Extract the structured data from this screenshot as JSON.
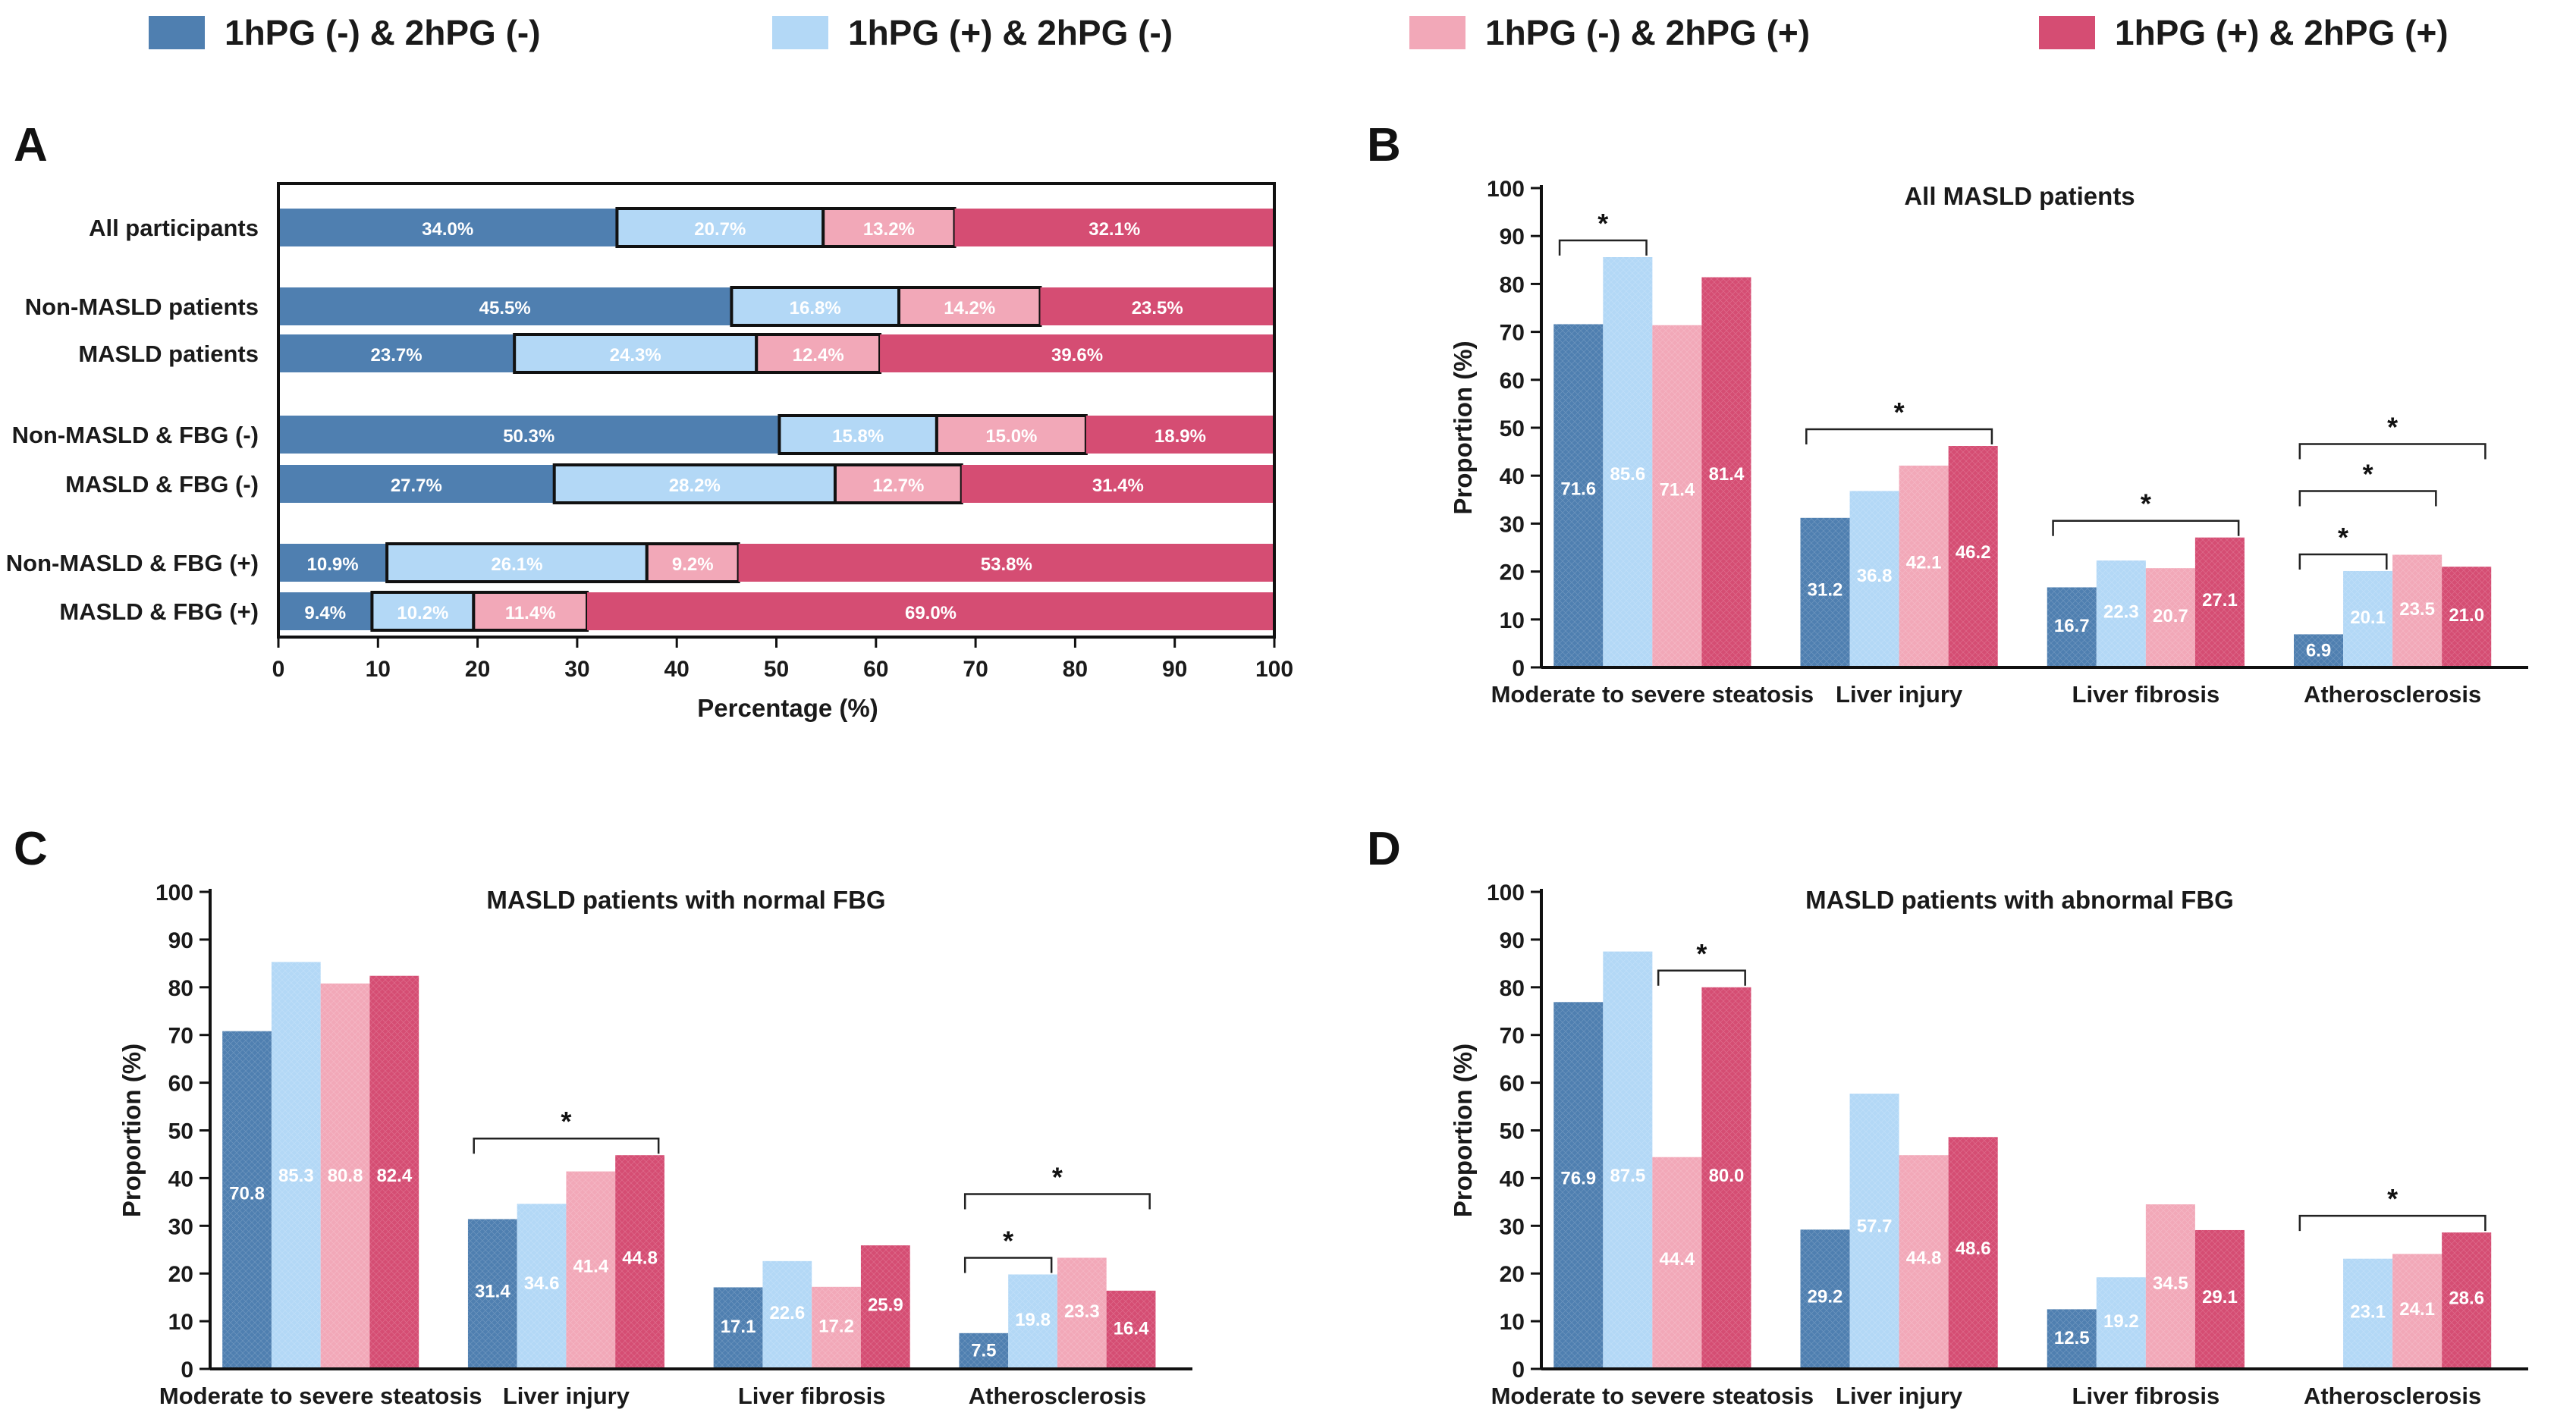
{
  "legend": [
    {
      "label": "1hPG (-) & 2hPG (-)",
      "color": "#4f7fb0"
    },
    {
      "label": "1hPG (+) & 2hPG (-)",
      "color": "#b3d8f6"
    },
    {
      "label": "1hPG (-) & 2hPG (+)",
      "color": "#f2a8b8"
    },
    {
      "label": "1hPG (+) & 2hPG (+)",
      "color": "#d54d73"
    }
  ],
  "chart_data": [
    {
      "panel": "A",
      "type": "bar",
      "orientation": "horizontal-stacked",
      "title": "",
      "xlabel": "Percentage (%)",
      "ylabel": "",
      "xlim": [
        0,
        100
      ],
      "xticks": [
        0,
        10,
        20,
        30,
        40,
        50,
        60,
        70,
        80,
        90,
        100
      ],
      "categories": [
        "All participants",
        "Non-MASLD patients",
        "MASLD patients",
        "Non-MASLD & FBG (-)",
        "MASLD & FBG (-)",
        "Non-MASLD & FBG (+)",
        "MASLD & FBG (+)"
      ],
      "series": [
        {
          "name": "1hPG (-) & 2hPG (-)",
          "values": [
            34.0,
            45.5,
            23.7,
            50.3,
            27.7,
            10.9,
            9.4
          ],
          "labels": [
            "34.0%",
            "45.5%",
            "23.7%",
            "50.3%",
            "27.7%",
            "10.9%",
            "9.4%"
          ]
        },
        {
          "name": "1hPG (+) & 2hPG (-)",
          "values": [
            20.7,
            16.8,
            24.3,
            15.8,
            28.2,
            26.1,
            10.2
          ],
          "labels": [
            "20.7%",
            "16.8%",
            "24.3%",
            "15.8%",
            "28.2%",
            "26.1%",
            "10.2%"
          ]
        },
        {
          "name": "1hPG (-) & 2hPG (+)",
          "values": [
            13.2,
            14.2,
            12.4,
            15.0,
            12.7,
            9.2,
            11.4
          ],
          "labels": [
            "13.2%",
            "14.2%",
            "12.4%",
            "15.0%",
            "12.7%",
            "9.2%",
            "11.4%"
          ]
        },
        {
          "name": "1hPG (+) & 2hPG (+)",
          "values": [
            32.1,
            23.5,
            39.6,
            18.9,
            31.4,
            53.8,
            69.0
          ],
          "labels": [
            "32.1%",
            "23.5%",
            "39.6%",
            "18.9%",
            "31.4%",
            "53.8%",
            "69.0%"
          ]
        }
      ]
    },
    {
      "panel": "B",
      "type": "bar",
      "title": "All MASLD patients",
      "xlabel": "",
      "ylabel": "Proportion (%)",
      "ylim": [
        0,
        100
      ],
      "yticks": [
        0,
        10,
        20,
        30,
        40,
        50,
        60,
        70,
        80,
        90,
        100
      ],
      "categories": [
        "Moderate to severe steatosis",
        "Liver injury",
        "Liver fibrosis",
        "Atherosclerosis"
      ],
      "series": [
        {
          "name": "1hPG (-) & 2hPG (-)",
          "values": [
            71.6,
            31.2,
            16.7,
            6.9
          ],
          "labels": [
            "71.6",
            "31.2",
            "16.7",
            "6.9"
          ]
        },
        {
          "name": "1hPG (+) & 2hPG (-)",
          "values": [
            85.6,
            36.8,
            22.3,
            20.1
          ],
          "labels": [
            "85.6",
            "36.8",
            "22.3",
            "20.1"
          ]
        },
        {
          "name": "1hPG (-) & 2hPG (+)",
          "values": [
            71.4,
            42.1,
            20.7,
            23.5
          ],
          "labels": [
            "71.4",
            "42.1",
            "20.7",
            "23.5"
          ]
        },
        {
          "name": "1hPG (+) & 2hPG (+)",
          "values": [
            81.4,
            46.2,
            27.1,
            21.0
          ],
          "labels": [
            "81.4",
            "46.2",
            "27.1",
            "21.0"
          ]
        }
      ],
      "significance": [
        {
          "category": 0,
          "from_series": 0,
          "to_series": 1,
          "label": "*"
        },
        {
          "category": 1,
          "from_series": 0,
          "to_series": 3,
          "label": "*"
        },
        {
          "category": 2,
          "from_series": 0,
          "to_series": 3,
          "label": "*"
        },
        {
          "category": 3,
          "from_series": 0,
          "to_series": 1,
          "label": "*"
        },
        {
          "category": 3,
          "from_series": 0,
          "to_series": 2,
          "label": "*"
        },
        {
          "category": 3,
          "from_series": 0,
          "to_series": 3,
          "label": "*"
        }
      ]
    },
    {
      "panel": "C",
      "type": "bar",
      "title": "MASLD patients with normal FBG",
      "xlabel": "",
      "ylabel": "Proportion (%)",
      "ylim": [
        0,
        100
      ],
      "yticks": [
        0,
        10,
        20,
        30,
        40,
        50,
        60,
        70,
        80,
        90,
        100
      ],
      "categories": [
        "Moderate to severe steatosis",
        "Liver injury",
        "Liver fibrosis",
        "Atherosclerosis"
      ],
      "series": [
        {
          "name": "1hPG (-) & 2hPG (-)",
          "values": [
            70.8,
            31.4,
            17.1,
            7.5
          ],
          "labels": [
            "70.8",
            "31.4",
            "17.1",
            "7.5"
          ]
        },
        {
          "name": "1hPG (+) & 2hPG (-)",
          "values": [
            85.3,
            34.6,
            22.6,
            19.8
          ],
          "labels": [
            "85.3",
            "34.6",
            "22.6",
            "19.8"
          ]
        },
        {
          "name": "1hPG (-) & 2hPG (+)",
          "values": [
            80.8,
            41.4,
            17.2,
            23.3
          ],
          "labels": [
            "80.8",
            "41.4",
            "17.2",
            "23.3"
          ]
        },
        {
          "name": "1hPG (+) & 2hPG (+)",
          "values": [
            82.4,
            44.8,
            25.9,
            16.4
          ],
          "labels": [
            "82.4",
            "44.8",
            "25.9",
            "16.4"
          ]
        }
      ],
      "significance": [
        {
          "category": 1,
          "from_series": 0,
          "to_series": 3,
          "label": "*"
        },
        {
          "category": 3,
          "from_series": 0,
          "to_series": 1,
          "label": "*"
        },
        {
          "category": 3,
          "from_series": 0,
          "to_series": 3,
          "label": "*"
        }
      ]
    },
    {
      "panel": "D",
      "type": "bar",
      "title": "MASLD patients with abnormal FBG",
      "xlabel": "",
      "ylabel": "Proportion (%)",
      "ylim": [
        0,
        100
      ],
      "yticks": [
        0,
        10,
        20,
        30,
        40,
        50,
        60,
        70,
        80,
        90,
        100
      ],
      "categories": [
        "Moderate to severe steatosis",
        "Liver injury",
        "Liver fibrosis",
        "Atherosclerosis"
      ],
      "series": [
        {
          "name": "1hPG (-) & 2hPG (-)",
          "values": [
            76.9,
            29.2,
            12.5,
            0
          ],
          "labels": [
            "76.9",
            "29.2",
            "12.5",
            ""
          ]
        },
        {
          "name": "1hPG (+) & 2hPG (-)",
          "values": [
            87.5,
            57.7,
            19.2,
            23.1
          ],
          "labels": [
            "87.5",
            "57.7",
            "19.2",
            "23.1"
          ]
        },
        {
          "name": "1hPG (-) & 2hPG (+)",
          "values": [
            44.4,
            44.8,
            34.5,
            24.1
          ],
          "labels": [
            "44.4",
            "44.8",
            "34.5",
            "24.1"
          ]
        },
        {
          "name": "1hPG (+) & 2hPG (+)",
          "values": [
            80.0,
            48.6,
            29.1,
            28.6
          ],
          "labels": [
            "80.0",
            "48.6",
            "29.1",
            "28.6"
          ]
        }
      ],
      "significance": [
        {
          "category": 0,
          "from_series": 2,
          "to_series": 3,
          "label": "*"
        },
        {
          "category": 3,
          "from_series": 0,
          "to_series": 3,
          "label": "*"
        }
      ]
    }
  ]
}
